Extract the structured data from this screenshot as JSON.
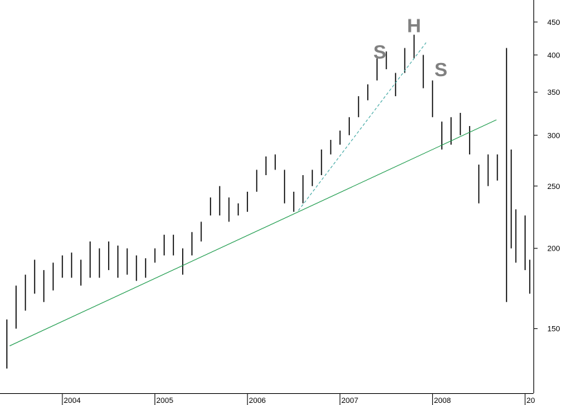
{
  "chart_data": {
    "type": "hilo",
    "log_scale": true,
    "color": "#000000",
    "xlim": [
      2003.326,
      2009.09
    ],
    "xticks": [
      2004,
      2005,
      2006,
      2007,
      2008,
      {
        "value": 2009,
        "label": "20"
      }
    ],
    "ylim": [
      119,
      487
    ],
    "yticks": [
      150,
      200,
      250,
      300,
      350,
      400,
      450
    ],
    "x": [
      2003.4,
      2003.5,
      2003.6,
      2003.7,
      2003.8,
      2003.9,
      2004.0,
      2004.1,
      2004.2,
      2004.3,
      2004.4,
      2004.5,
      2004.6,
      2004.7,
      2004.8,
      2004.9,
      2005.0,
      2005.1,
      2005.2,
      2005.3,
      2005.4,
      2005.5,
      2005.6,
      2005.7,
      2005.8,
      2005.9,
      2006.0,
      2006.1,
      2006.2,
      2006.3,
      2006.4,
      2006.5,
      2006.6,
      2006.7,
      2006.8,
      2006.9,
      2007.0,
      2007.1,
      2007.2,
      2007.3,
      2007.4,
      2007.5,
      2007.6,
      2007.7,
      2007.8,
      2007.9,
      2008.0,
      2008.1,
      2008.2,
      2008.3,
      2008.4,
      2008.5,
      2008.6,
      2008.7,
      2008.8,
      2008.85,
      2008.9,
      2009.0,
      2009.05
    ],
    "high": [
      155,
      175,
      182,
      192,
      185,
      190,
      195,
      197,
      192,
      205,
      200,
      205,
      202,
      200,
      195,
      193,
      200,
      210,
      210,
      200,
      212,
      220,
      240,
      250,
      240,
      235,
      245,
      265,
      278,
      280,
      265,
      245,
      260,
      265,
      285,
      295,
      305,
      320,
      345,
      360,
      395,
      405,
      375,
      410,
      430,
      400,
      365,
      315,
      320,
      325,
      310,
      270,
      280,
      280,
      410,
      285,
      230,
      225,
      192
    ],
    "low": [
      130,
      150,
      160,
      170,
      165,
      172,
      180,
      180,
      175,
      180,
      180,
      185,
      180,
      182,
      178,
      180,
      190,
      195,
      195,
      182,
      195,
      205,
      225,
      225,
      220,
      225,
      228,
      245,
      260,
      265,
      235,
      228,
      235,
      250,
      260,
      280,
      290,
      300,
      320,
      340,
      365,
      380,
      345,
      375,
      395,
      355,
      320,
      285,
      290,
      300,
      280,
      235,
      250,
      255,
      165,
      200,
      190,
      185,
      170
    ],
    "trendlines": [
      {
        "x": [
          2003.43,
          2008.69
        ],
        "y": [
          141,
          317
        ],
        "color": "#1a9a4a",
        "dashed": false
      },
      {
        "x": [
          2006.55,
          2007.93
        ],
        "y": [
          229,
          418
        ],
        "color": "#3aa5a0",
        "dashed": true
      }
    ],
    "annotations": [
      {
        "text": "S",
        "x": 2007.43,
        "y": 405
      },
      {
        "text": "H",
        "x": 2007.8,
        "y": 445
      },
      {
        "text": "S",
        "x": 2008.09,
        "y": 380
      }
    ]
  }
}
